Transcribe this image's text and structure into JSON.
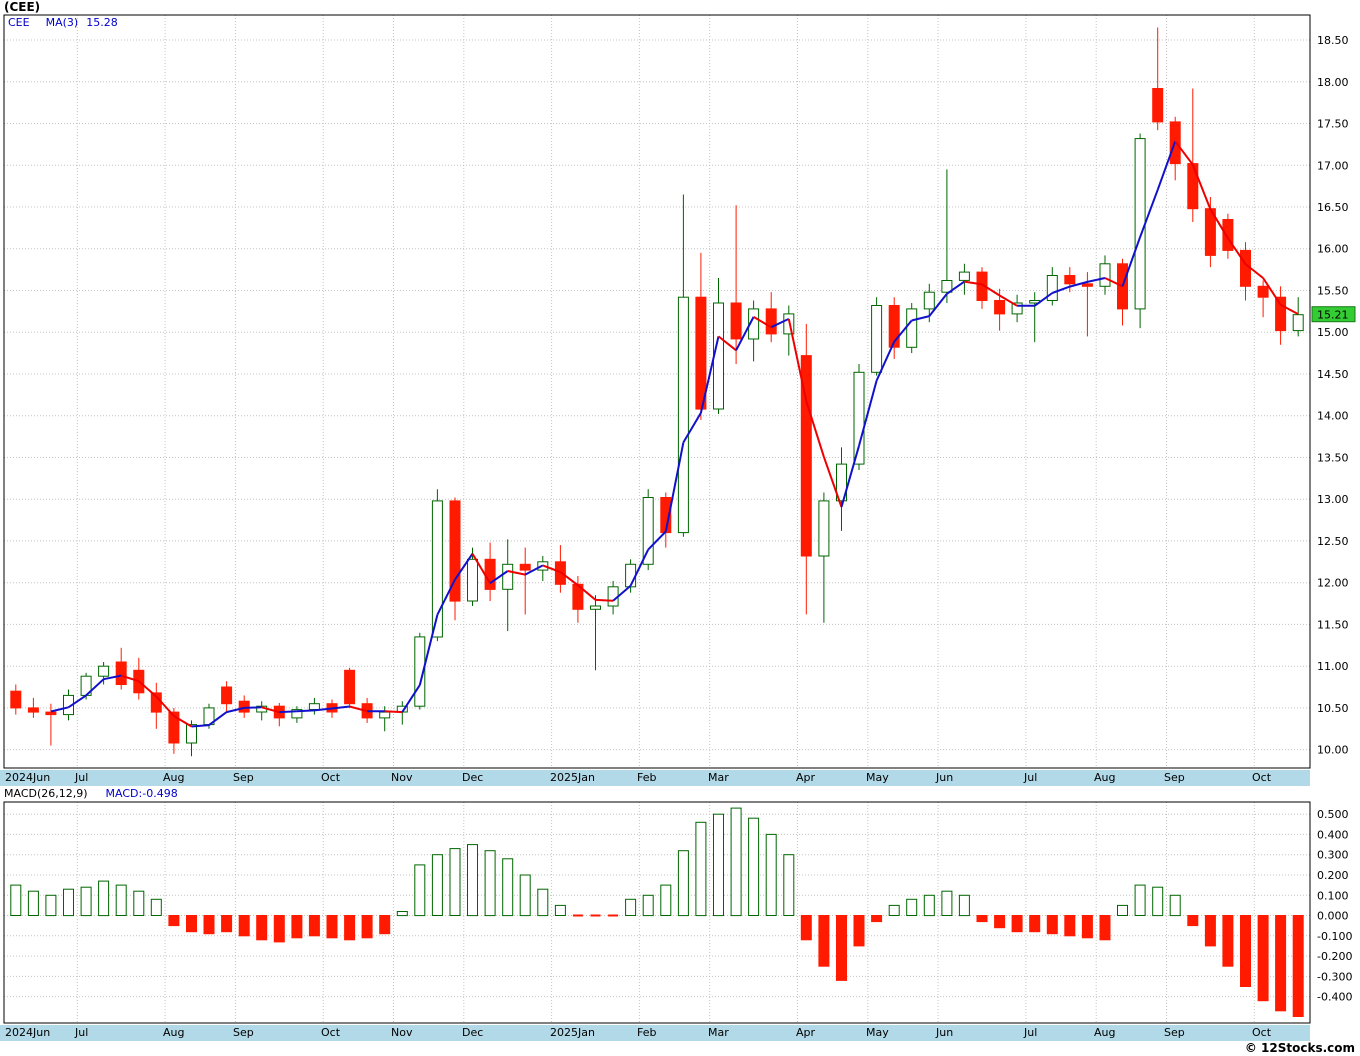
{
  "title": "(CEE)",
  "legend": {
    "symbol": "CEE",
    "ma_label": "MA(3)",
    "ma_value": "15.28"
  },
  "price_badge": "15.21",
  "macd": {
    "params_label": "MACD(26,12,9)",
    "value_label": "MACD:-0.498"
  },
  "footer": {
    "copyright": "© 12Stocks.com"
  },
  "colors": {
    "up": "#006600",
    "down": "#ff1a00",
    "ma_up": "#1111cc",
    "ma_down": "#ee0000",
    "band": "#b2d9e8",
    "grid": "#c4c4c4",
    "badge_bg": "#33cc33",
    "badge_border": "#1a7a1a",
    "legend_text": "#0000cc"
  },
  "chart_data": [
    {
      "type": "candlestick",
      "title": "CEE weekly candlestick chart with MA(3)",
      "ylabel": "Price",
      "ylim": [
        9.78,
        18.8
      ],
      "grid": true,
      "yticks": [
        "18.50",
        "18.00",
        "17.50",
        "17.00",
        "16.50",
        "16.00",
        "15.50",
        "15.00",
        "14.50",
        "14.00",
        "13.50",
        "13.00",
        "12.50",
        "12.00",
        "11.50",
        "11.00",
        "10.50",
        "10.00"
      ],
      "x_axis_months": [
        "2024Jun",
        "Jul",
        "Aug",
        "Sep",
        "Oct",
        "Nov",
        "Dec",
        "2025Jan",
        "Feb",
        "Mar",
        "Apr",
        "May",
        "Jun",
        "Jul",
        "Aug",
        "Sep",
        "Oct"
      ],
      "columns": [
        "month",
        "open",
        "high",
        "low",
        "close"
      ],
      "candles": [
        [
          "2024Jun",
          10.7,
          10.78,
          10.42,
          10.5
        ],
        [
          "",
          10.5,
          10.62,
          10.38,
          10.45
        ],
        [
          "",
          10.45,
          10.55,
          10.05,
          10.42
        ],
        [
          "",
          10.42,
          10.72,
          10.35,
          10.65
        ],
        [
          "Jul",
          10.65,
          10.92,
          10.6,
          10.88
        ],
        [
          "",
          10.88,
          11.05,
          10.78,
          11.0
        ],
        [
          "",
          11.05,
          11.22,
          10.72,
          10.78
        ],
        [
          "",
          10.95,
          11.1,
          10.6,
          10.68
        ],
        [
          "",
          10.68,
          10.8,
          10.25,
          10.45
        ],
        [
          "Aug",
          10.45,
          10.5,
          9.95,
          10.08
        ],
        [
          "",
          10.08,
          10.35,
          9.92,
          10.3
        ],
        [
          "",
          10.3,
          10.55,
          10.25,
          10.5
        ],
        [
          "",
          10.75,
          10.82,
          10.45,
          10.55
        ],
        [
          "Sep",
          10.58,
          10.65,
          10.38,
          10.45
        ],
        [
          "",
          10.45,
          10.58,
          10.35,
          10.52
        ],
        [
          "",
          10.52,
          10.56,
          10.28,
          10.38
        ],
        [
          "",
          10.38,
          10.52,
          10.32,
          10.48
        ],
        [
          "",
          10.48,
          10.62,
          10.42,
          10.55
        ],
        [
          "Oct",
          10.55,
          10.6,
          10.38,
          10.45
        ],
        [
          "",
          10.95,
          10.98,
          10.5,
          10.55
        ],
        [
          "",
          10.55,
          10.62,
          10.32,
          10.38
        ],
        [
          "",
          10.38,
          10.52,
          10.22,
          10.45
        ],
        [
          "Nov",
          10.45,
          10.58,
          10.3,
          10.52
        ],
        [
          "",
          10.52,
          11.4,
          10.48,
          11.35
        ],
        [
          "",
          11.35,
          13.12,
          11.3,
          12.98
        ],
        [
          "",
          12.98,
          13.02,
          11.55,
          11.78
        ],
        [
          "Dec",
          11.78,
          12.42,
          11.72,
          12.28
        ],
        [
          "",
          12.28,
          12.48,
          11.78,
          11.92
        ],
        [
          "",
          11.92,
          12.52,
          11.42,
          12.22
        ],
        [
          "",
          12.22,
          12.42,
          11.62,
          12.15
        ],
        [
          "",
          12.15,
          12.32,
          12.02,
          12.25
        ],
        [
          "2025Jan",
          12.25,
          12.45,
          11.88,
          11.98
        ],
        [
          "",
          11.98,
          12.08,
          11.52,
          11.68
        ],
        [
          "",
          11.68,
          11.85,
          10.95,
          11.72
        ],
        [
          "",
          11.72,
          12.02,
          11.62,
          11.95
        ],
        [
          "",
          11.95,
          12.28,
          11.88,
          12.22
        ],
        [
          "Feb",
          12.22,
          13.12,
          12.15,
          13.02
        ],
        [
          "",
          13.02,
          13.08,
          12.42,
          12.6
        ],
        [
          "",
          12.6,
          16.65,
          12.55,
          15.42
        ],
        [
          "",
          15.42,
          15.95,
          13.95,
          14.08
        ],
        [
          "Mar",
          14.08,
          15.65,
          14.02,
          15.35
        ],
        [
          "",
          15.35,
          16.52,
          14.62,
          14.92
        ],
        [
          "",
          14.92,
          15.38,
          14.65,
          15.28
        ],
        [
          "",
          15.28,
          15.48,
          14.88,
          14.98
        ],
        [
          "",
          14.98,
          15.32,
          14.72,
          15.22
        ],
        [
          "Apr",
          14.72,
          15.1,
          11.62,
          12.32
        ],
        [
          "",
          12.32,
          13.08,
          11.52,
          12.98
        ],
        [
          "",
          12.98,
          13.62,
          12.62,
          13.42
        ],
        [
          "",
          13.42,
          14.62,
          13.35,
          14.52
        ],
        [
          "May",
          14.52,
          15.42,
          14.48,
          15.32
        ],
        [
          "",
          15.32,
          15.42,
          14.68,
          14.82
        ],
        [
          "",
          14.82,
          15.35,
          14.75,
          15.28
        ],
        [
          "",
          15.28,
          15.58,
          15.12,
          15.48
        ],
        [
          "Jun",
          15.48,
          16.95,
          15.35,
          15.62
        ],
        [
          "",
          15.62,
          15.82,
          15.45,
          15.72
        ],
        [
          "",
          15.72,
          15.78,
          15.28,
          15.38
        ],
        [
          "",
          15.38,
          15.52,
          15.02,
          15.22
        ],
        [
          "",
          15.22,
          15.45,
          15.12,
          15.35
        ],
        [
          "Jul",
          15.35,
          15.48,
          14.88,
          15.38
        ],
        [
          "",
          15.38,
          15.78,
          15.32,
          15.68
        ],
        [
          "",
          15.68,
          15.78,
          15.48,
          15.58
        ],
        [
          "",
          15.58,
          15.72,
          14.95,
          15.55
        ],
        [
          "Aug",
          15.55,
          15.92,
          15.45,
          15.82
        ],
        [
          "",
          15.82,
          15.88,
          15.08,
          15.28
        ],
        [
          "",
          15.28,
          17.38,
          15.05,
          17.32
        ],
        [
          "",
          17.92,
          18.65,
          17.42,
          17.52
        ],
        [
          "Sep",
          17.52,
          17.58,
          16.82,
          17.02
        ],
        [
          "",
          17.02,
          17.92,
          16.32,
          16.48
        ],
        [
          "",
          16.48,
          16.62,
          15.78,
          15.92
        ],
        [
          "",
          16.35,
          16.42,
          15.88,
          15.98
        ],
        [
          "",
          15.98,
          16.08,
          15.38,
          15.55
        ],
        [
          "Oct",
          15.55,
          15.62,
          15.18,
          15.42
        ],
        [
          "",
          15.42,
          15.55,
          14.85,
          15.02
        ],
        [
          "",
          15.02,
          15.42,
          14.95,
          15.21
        ]
      ]
    },
    {
      "type": "bar",
      "title": "MACD(26,12,9) histogram",
      "ylim": [
        -0.53,
        0.56
      ],
      "grid": true,
      "legend_position": "top-left",
      "yticks": [
        "0.500",
        "0.400",
        "0.300",
        "0.200",
        "0.100",
        "0.000",
        "-0.100",
        "-0.200",
        "-0.300",
        "-0.400"
      ],
      "values": [
        0.15,
        0.12,
        0.1,
        0.13,
        0.14,
        0.17,
        0.15,
        0.12,
        0.08,
        -0.05,
        -0.08,
        -0.09,
        -0.08,
        -0.1,
        -0.12,
        -0.13,
        -0.11,
        -0.1,
        -0.11,
        -0.12,
        -0.11,
        -0.09,
        0.02,
        0.25,
        0.3,
        0.33,
        0.35,
        0.32,
        0.28,
        0.2,
        0.13,
        0.05,
        -0.01,
        -0.01,
        -0.01,
        0.08,
        0.1,
        0.15,
        0.32,
        0.46,
        0.5,
        0.53,
        0.48,
        0.4,
        0.3,
        -0.12,
        -0.25,
        -0.32,
        -0.15,
        -0.03,
        0.05,
        0.08,
        0.1,
        0.12,
        0.1,
        -0.03,
        -0.06,
        -0.08,
        -0.08,
        -0.09,
        -0.1,
        -0.11,
        -0.12,
        0.05,
        0.15,
        0.14,
        0.1,
        -0.05,
        -0.15,
        -0.25,
        -0.35,
        -0.42,
        -0.47,
        -0.498
      ],
      "last_value": -0.498
    }
  ]
}
